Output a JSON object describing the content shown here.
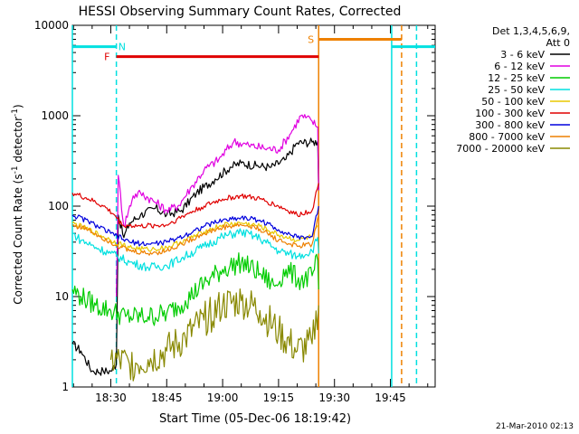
{
  "chart_data": {
    "type": "line",
    "title": "HESSI Observing Summary Count Rates, Corrected",
    "xlabel": "Start Time (05-Dec-06 18:19:42)",
    "ylabel_main": "Corrected Count Rate (s",
    "ylabel_exp1": "-1",
    "ylabel_mid": " detector",
    "ylabel_exp2": "-1",
    "ylabel_end": ")",
    "footer": "21-Mar-2010 02:13",
    "legend_title_line1": "Det 1,3,4,5,6,9,",
    "legend_title_line2": "Att 0",
    "x_domain": [
      "18:19:42",
      "19:57:00"
    ],
    "x_ticks": [
      "18:30",
      "18:45",
      "19:00",
      "19:15",
      "19:30",
      "19:45"
    ],
    "y_scale": "log",
    "ylim": [
      1,
      10000
    ],
    "y_ticks": [
      {
        "value": 1,
        "label": "1"
      },
      {
        "value": 10,
        "label": "10"
      },
      {
        "value": 100,
        "label": "100"
      },
      {
        "value": 1000,
        "label": "1000"
      },
      {
        "value": 10000,
        "label": "10000"
      }
    ],
    "series": [
      {
        "name": "3 - 6 keV",
        "color": "#000000",
        "noise": 0.05,
        "points": [
          [
            "18:19:42",
            3.0
          ],
          [
            "18:22:00",
            2.5
          ],
          [
            "18:25:00",
            1.5
          ],
          [
            "18:28:00",
            1.5
          ],
          [
            "18:30:00",
            1.5
          ],
          [
            "18:31:30",
            1.8
          ],
          [
            "18:32:00",
            80
          ],
          [
            "18:33:30",
            45
          ],
          [
            "18:35:00",
            65
          ],
          [
            "18:38:00",
            80
          ],
          [
            "18:42:00",
            95
          ],
          [
            "18:45:00",
            80
          ],
          [
            "18:49:00",
            90
          ],
          [
            "18:53:00",
            140
          ],
          [
            "18:58:00",
            200
          ],
          [
            "19:02:00",
            270
          ],
          [
            "19:05:00",
            300
          ],
          [
            "19:09:00",
            280
          ],
          [
            "19:13:00",
            270
          ],
          [
            "19:17:00",
            330
          ],
          [
            "19:20:00",
            500
          ],
          [
            "19:24:00",
            510
          ],
          [
            "19:25:30",
            520
          ],
          [
            "19:25:45",
            150
          ]
        ]
      },
      {
        "name": "6 - 12 keV",
        "color": "#e000e0",
        "noise": 0.05,
        "points": [
          [
            "18:31:30",
            10
          ],
          [
            "18:32:00",
            220
          ],
          [
            "18:33:30",
            60
          ],
          [
            "18:36:00",
            130
          ],
          [
            "18:38:00",
            140
          ],
          [
            "18:42:00",
            110
          ],
          [
            "18:45:00",
            90
          ],
          [
            "18:48:00",
            100
          ],
          [
            "18:52:00",
            170
          ],
          [
            "18:55:00",
            250
          ],
          [
            "18:59:00",
            330
          ],
          [
            "19:03:00",
            520
          ],
          [
            "19:07:00",
            470
          ],
          [
            "19:11:00",
            440
          ],
          [
            "19:15:00",
            420
          ],
          [
            "19:18:00",
            620
          ],
          [
            "19:21:00",
            1000
          ],
          [
            "19:24:00",
            870
          ],
          [
            "19:25:30",
            750
          ],
          [
            "19:25:45",
            150
          ]
        ]
      },
      {
        "name": "12 - 25 keV",
        "color": "#00cc00",
        "noise": 0.12,
        "points": [
          [
            "18:19:42",
            12
          ],
          [
            "18:22:00",
            10
          ],
          [
            "18:26:00",
            8
          ],
          [
            "18:30:00",
            7
          ],
          [
            "18:34:00",
            6
          ],
          [
            "18:40:00",
            6
          ],
          [
            "18:45:00",
            6.5
          ],
          [
            "18:50:00",
            9
          ],
          [
            "18:55:00",
            14
          ],
          [
            "19:00:00",
            20
          ],
          [
            "19:05:00",
            24
          ],
          [
            "19:10:00",
            18
          ],
          [
            "19:14:00",
            13
          ],
          [
            "19:17:00",
            20
          ],
          [
            "19:21:00",
            15
          ],
          [
            "19:24:00",
            17
          ],
          [
            "19:25:30",
            25
          ],
          [
            "19:25:45",
            12
          ]
        ]
      },
      {
        "name": "25 - 50 keV",
        "color": "#00e0e0",
        "noise": 0.05,
        "points": [
          [
            "18:19:42",
            50
          ],
          [
            "18:22:00",
            42
          ],
          [
            "18:26:00",
            35
          ],
          [
            "18:30:00",
            30
          ],
          [
            "18:35:00",
            24
          ],
          [
            "18:40:00",
            21
          ],
          [
            "18:45:00",
            22
          ],
          [
            "18:50:00",
            28
          ],
          [
            "18:55:00",
            36
          ],
          [
            "19:00:00",
            46
          ],
          [
            "19:05:00",
            52
          ],
          [
            "19:10:00",
            44
          ],
          [
            "19:15:00",
            32
          ],
          [
            "19:20:00",
            28
          ],
          [
            "19:24:00",
            32
          ],
          [
            "19:25:30",
            45
          ],
          [
            "19:25:45",
            30
          ]
        ]
      },
      {
        "name": "50 - 100 keV",
        "color": "#e8c800",
        "noise": 0.03,
        "points": [
          [
            "18:19:42",
            65
          ],
          [
            "18:24:00",
            55
          ],
          [
            "18:30:00",
            42
          ],
          [
            "18:35:00",
            35
          ],
          [
            "18:40:00",
            33
          ],
          [
            "18:45:00",
            35
          ],
          [
            "18:50:00",
            42
          ],
          [
            "18:55:00",
            52
          ],
          [
            "19:00:00",
            62
          ],
          [
            "19:05:00",
            65
          ],
          [
            "19:10:00",
            60
          ],
          [
            "19:15:00",
            48
          ],
          [
            "19:20:00",
            42
          ],
          [
            "19:24:00",
            46
          ],
          [
            "19:25:45",
            60
          ]
        ]
      },
      {
        "name": "100 - 300 keV",
        "color": "#e00000",
        "noise": 0.03,
        "points": [
          [
            "18:19:42",
            140
          ],
          [
            "18:24:00",
            120
          ],
          [
            "18:28:00",
            100
          ],
          [
            "18:31:00",
            80
          ],
          [
            "18:33:00",
            62
          ],
          [
            "18:38:00",
            60
          ],
          [
            "18:45:00",
            62
          ],
          [
            "18:50:00",
            80
          ],
          [
            "18:55:00",
            100
          ],
          [
            "19:00:00",
            120
          ],
          [
            "19:05:00",
            130
          ],
          [
            "19:10:00",
            120
          ],
          [
            "19:15:00",
            100
          ],
          [
            "19:20:00",
            80
          ],
          [
            "19:24:00",
            90
          ],
          [
            "19:25:45",
            180
          ]
        ]
      },
      {
        "name": "300 - 800 keV",
        "color": "#0000dd",
        "noise": 0.03,
        "points": [
          [
            "18:19:42",
            80
          ],
          [
            "18:24:00",
            68
          ],
          [
            "18:30:00",
            50
          ],
          [
            "18:35:00",
            40
          ],
          [
            "18:40:00",
            38
          ],
          [
            "18:45:00",
            40
          ],
          [
            "18:50:00",
            48
          ],
          [
            "18:55:00",
            60
          ],
          [
            "19:00:00",
            70
          ],
          [
            "19:05:00",
            75
          ],
          [
            "19:10:00",
            70
          ],
          [
            "19:15:00",
            55
          ],
          [
            "19:20:00",
            45
          ],
          [
            "19:24:00",
            46
          ],
          [
            "19:25:45",
            100
          ]
        ]
      },
      {
        "name": "800 - 7000 keV",
        "color": "#ee8000",
        "noise": 0.03,
        "points": [
          [
            "18:19:42",
            62
          ],
          [
            "18:24:00",
            55
          ],
          [
            "18:30:00",
            40
          ],
          [
            "18:35:00",
            32
          ],
          [
            "18:40:00",
            30
          ],
          [
            "18:45:00",
            32
          ],
          [
            "18:50:00",
            40
          ],
          [
            "18:55:00",
            50
          ],
          [
            "19:00:00",
            58
          ],
          [
            "19:05:00",
            62
          ],
          [
            "19:10:00",
            56
          ],
          [
            "19:15:00",
            42
          ],
          [
            "19:20:00",
            36
          ],
          [
            "19:24:00",
            38
          ],
          [
            "19:25:45",
            80
          ]
        ]
      },
      {
        "name": "7000 - 20000 keV",
        "color": "#888800",
        "noise": 0.2,
        "points": [
          [
            "18:30:00",
            2.0
          ],
          [
            "18:35:00",
            1.8
          ],
          [
            "18:40:00",
            2.0
          ],
          [
            "18:45:00",
            2.5
          ],
          [
            "18:50:00",
            3.5
          ],
          [
            "18:55:00",
            5.5
          ],
          [
            "19:00:00",
            8
          ],
          [
            "19:05:00",
            9
          ],
          [
            "19:10:00",
            7
          ],
          [
            "19:15:00",
            4
          ],
          [
            "19:20:00",
            2.5
          ],
          [
            "19:24:00",
            3
          ],
          [
            "19:25:45",
            8
          ]
        ]
      }
    ],
    "flags": [
      {
        "label": "N",
        "color": "#00e0e0",
        "line_color": "#00e0e0",
        "y": 5800,
        "from": "18:19:42",
        "to": "18:31:30",
        "label_x": "18:32:00",
        "label_y": 5800,
        "label_side": "right"
      },
      {
        "label": "F",
        "color": "#e00000",
        "line_color": "#e00000",
        "y": 4500,
        "from": "18:31:30",
        "to": "19:25:45",
        "label_x": "18:29:45",
        "label_y": 4500,
        "label_side": "left"
      },
      {
        "label": "S",
        "color": "#ee8000",
        "line_color": "#ee8000",
        "y": 7000,
        "from": "19:25:45",
        "to": "19:48:00",
        "label_x": "19:24:30",
        "label_y": 7000,
        "label_side": "left"
      },
      {
        "label": "",
        "color": "#00e0e0",
        "line_color": "#00e0e0",
        "y": 5800,
        "from": "19:45:20",
        "to": "19:57:00",
        "label_x": "19:45:20",
        "label_y": 5800,
        "label_side": "right"
      }
    ],
    "markers": [
      {
        "time": "18:31:30",
        "color": "#00e0e0",
        "dash": true
      },
      {
        "time": "19:25:45",
        "color": "#ee8000",
        "dash": false
      },
      {
        "time": "19:45:20",
        "color": "#00e0e0",
        "dash": false
      },
      {
        "time": "19:48:00",
        "color": "#ee8000",
        "dash": true
      },
      {
        "time": "19:52:00",
        "color": "#00e0e0",
        "dash": true
      },
      {
        "time": "18:19:42",
        "color": "#00e0e0",
        "dash": false
      }
    ]
  }
}
